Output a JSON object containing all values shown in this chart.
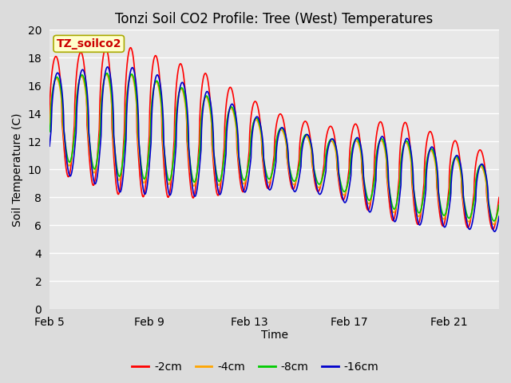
{
  "title": "Tonzi Soil CO2 Profile: Tree (West) Temperatures",
  "xlabel": "Time",
  "ylabel": "Soil Temperature (C)",
  "annotation": "TZ_soilco2",
  "ylim": [
    0,
    20
  ],
  "yticks": [
    0,
    2,
    4,
    6,
    8,
    10,
    12,
    14,
    16,
    18,
    20
  ],
  "xtick_labels": [
    "Feb 5",
    "Feb 9",
    "Feb 13",
    "Feb 17",
    "Feb 21"
  ],
  "xtick_positions": [
    0,
    4,
    8,
    12,
    16
  ],
  "series": [
    "-2cm",
    "-4cm",
    "-8cm",
    "-16cm"
  ],
  "colors": [
    "#ff0000",
    "#ffa500",
    "#00cc00",
    "#0000cc"
  ],
  "bg_color": "#dcdcdc",
  "plot_bg_color": "#e8e8e8",
  "grid_color": "#ffffff",
  "total_days": 18,
  "points_per_day": 96
}
